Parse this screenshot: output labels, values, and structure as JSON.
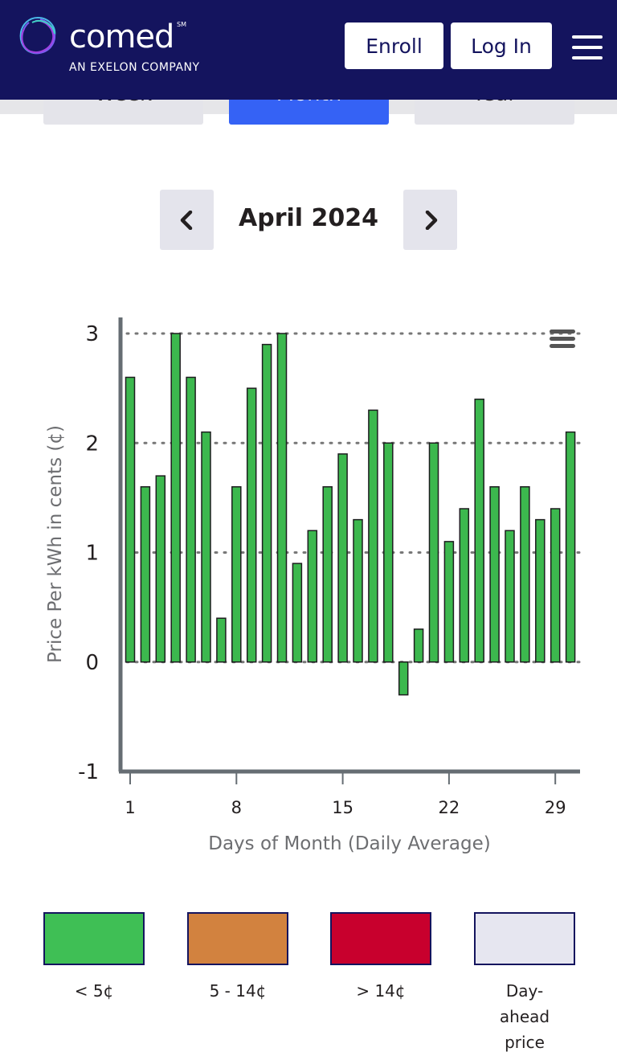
{
  "header": {
    "logo_text": "comed",
    "logo_mark": "SM",
    "logo_subtitle": "AN EXELON COMPANY",
    "enroll_label": "Enroll",
    "login_label": "Log In",
    "menu_icon": "hamburger-menu-icon"
  },
  "tabs": [
    {
      "label": "Week",
      "active": false
    },
    {
      "label": "Month",
      "active": true
    },
    {
      "label": "Year",
      "active": false
    }
  ],
  "navigator": {
    "month": "April 2024",
    "prev_icon": "chevron-left-icon",
    "next_icon": "chevron-right-icon"
  },
  "chart_data": {
    "type": "bar",
    "xlabel": "Days of Month (Daily Average)",
    "ylabel": "Price Per kWh in cents (¢)",
    "ylim": [
      -1,
      3
    ],
    "yticks": [
      "3",
      "2",
      "1",
      "0",
      "-1"
    ],
    "xticks": [
      "1",
      "8",
      "15",
      "22",
      "29"
    ],
    "grid": "dotted horizontal",
    "bar_color": "#3cb84e",
    "x": [
      1,
      2,
      3,
      4,
      5,
      6,
      7,
      8,
      9,
      10,
      11,
      12,
      13,
      14,
      15,
      16,
      17,
      18,
      19,
      20,
      21,
      22,
      23,
      24,
      25,
      26,
      27,
      28,
      29,
      30
    ],
    "values": [
      2.6,
      1.6,
      1.7,
      3.0,
      2.6,
      2.1,
      0.4,
      1.6,
      2.5,
      2.9,
      3.0,
      0.9,
      1.2,
      1.6,
      1.9,
      1.3,
      2.3,
      2.0,
      -0.3,
      0.3,
      2.0,
      1.1,
      1.4,
      2.4,
      1.6,
      1.2,
      1.6,
      1.3,
      1.4,
      2.1
    ],
    "menu_icon": "chart-menu-icon"
  },
  "legend": [
    {
      "label": "< 5¢",
      "color": "#3fbf55"
    },
    {
      "label": "5 - 14¢",
      "color": "#d2823f"
    },
    {
      "label": "> 14¢",
      "color": "#c8002d"
    },
    {
      "label": "Day-ahead price",
      "color": "#e6e6f0"
    }
  ]
}
